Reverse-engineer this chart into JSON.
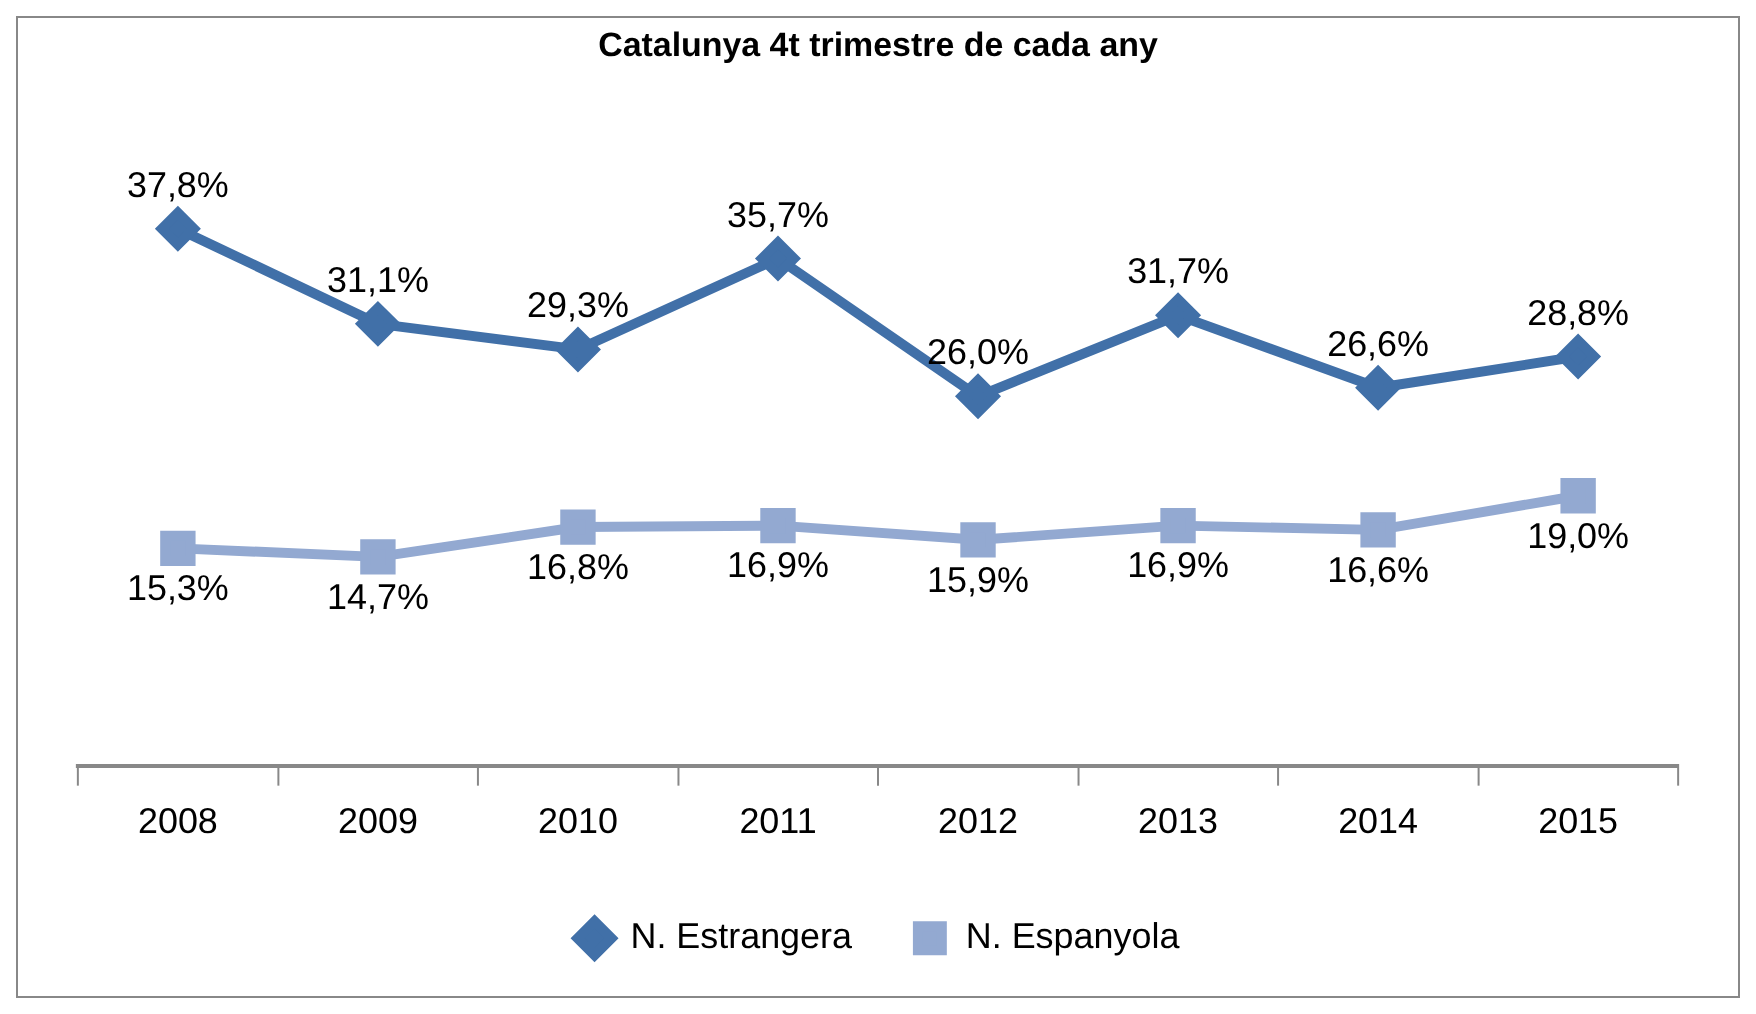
{
  "chart_data": {
    "type": "line",
    "title": "Catalunya 4t trimestre de cada any",
    "categories": [
      "2008",
      "2009",
      "2010",
      "2011",
      "2012",
      "2013",
      "2014",
      "2015"
    ],
    "series": [
      {
        "name": "N. Estrangera",
        "color": "#4170a8",
        "marker": "diamond",
        "values": [
          37.8,
          31.1,
          29.3,
          35.7,
          26.0,
          31.7,
          26.6,
          28.8
        ],
        "value_labels": [
          "37,8%",
          "31,1%",
          "29,3%",
          "35,7%",
          "26,0%",
          "31,7%",
          "26,6%",
          "28,8%"
        ]
      },
      {
        "name": "N. Espanyola",
        "color": "#93a9d1",
        "marker": "square",
        "values": [
          15.3,
          14.7,
          16.8,
          16.9,
          15.9,
          16.9,
          16.6,
          19.0
        ],
        "value_labels": [
          "15,3%",
          "14,7%",
          "16,8%",
          "16,9%",
          "15,9%",
          "16,9%",
          "16,6%",
          "19,0%"
        ]
      }
    ],
    "legend": "bottom",
    "grid": false
  }
}
